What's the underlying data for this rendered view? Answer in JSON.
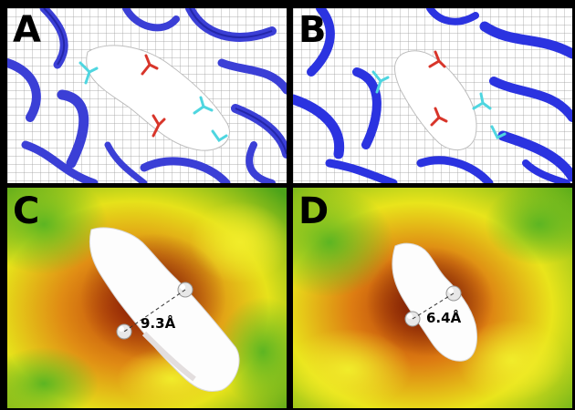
{
  "panels": [
    {
      "label": "A",
      "view": "ribbon with mesh pocket"
    },
    {
      "label": "B",
      "view": "ribbon with mesh pocket"
    },
    {
      "label": "C",
      "view": "surface pocket",
      "distance": "9.3Å"
    },
    {
      "label": "D",
      "view": "surface pocket",
      "distance": "6.4Å"
    }
  ],
  "colors": {
    "ribbon": "#3b3fd6",
    "mesh": "#9a9a9a",
    "residue_red": "#d8352a",
    "residue_cyan": "#4fd6e0",
    "surface_green": "#66bb22",
    "surface_yellow": "#e6e21a",
    "surface_red": "#cc2b0b",
    "cavity": "#ffffff"
  }
}
